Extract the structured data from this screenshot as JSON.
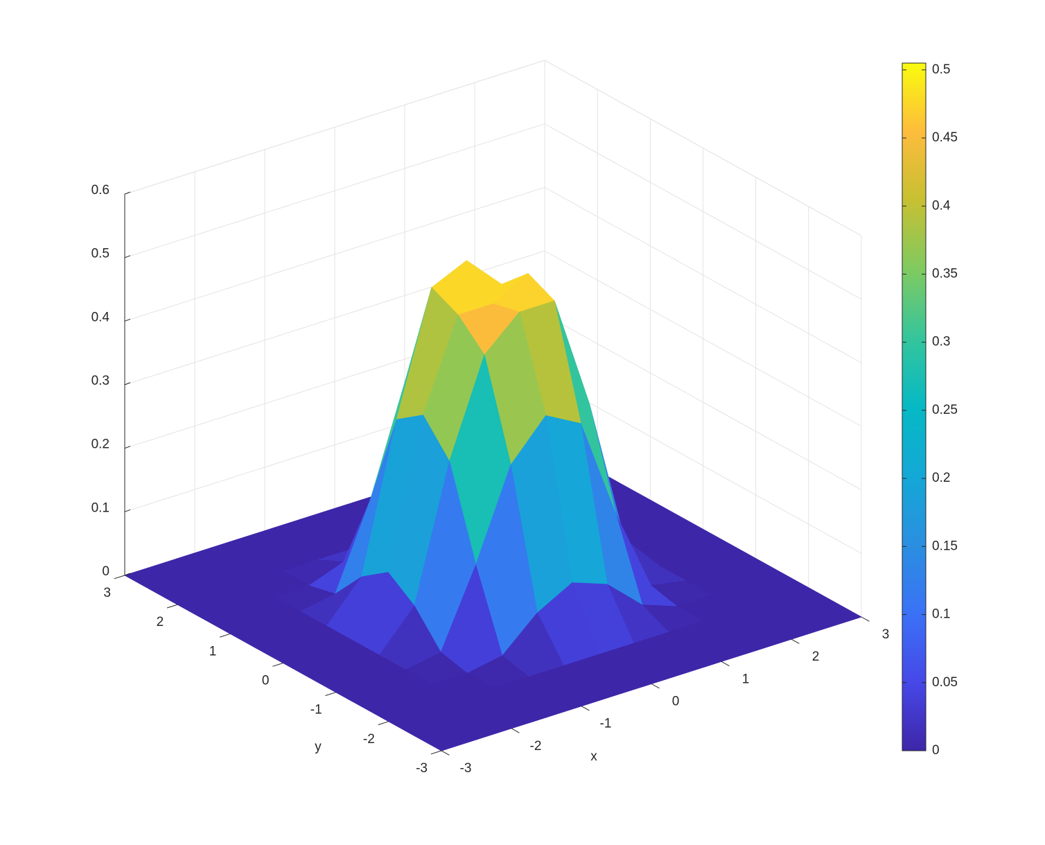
{
  "chart_data": {
    "type": "surface",
    "x_label": "x",
    "y_label": "y",
    "x": [
      -3,
      -2.5,
      -2,
      -1.5,
      -1,
      -0.5,
      0,
      0.5,
      1,
      1.5,
      2,
      2.5,
      3
    ],
    "y": [
      -3,
      -2.5,
      -2,
      -1.5,
      -1,
      -0.5,
      0,
      0.5,
      1,
      1.5,
      2,
      2.5,
      3
    ],
    "z": [
      [
        0,
        0,
        0,
        0,
        0,
        0,
        0,
        0,
        0,
        0,
        0,
        0,
        0
      ],
      [
        0,
        0,
        0,
        0,
        0,
        0,
        0,
        0,
        0,
        0,
        0,
        0,
        0
      ],
      [
        0,
        0,
        0,
        0,
        0,
        0,
        0,
        0,
        0,
        0,
        0,
        0,
        0
      ],
      [
        0,
        0,
        0,
        0,
        0.01,
        0.06,
        0.09,
        0.07,
        0.02,
        0,
        0,
        0,
        0
      ],
      [
        0,
        0,
        0,
        0.01,
        0.13,
        0.27,
        0.33,
        0.3,
        0.14,
        0.01,
        0,
        0,
        0
      ],
      [
        0,
        0,
        0,
        0.06,
        0.27,
        0.42,
        0.47,
        0.47,
        0.29,
        0.06,
        0,
        0,
        0
      ],
      [
        0,
        0,
        0,
        0.09,
        0.32,
        0.46,
        0.46,
        0.49,
        0.34,
        0.09,
        0,
        0,
        0
      ],
      [
        0,
        0,
        0,
        0.06,
        0.29,
        0.48,
        0.505,
        0.45,
        0.28,
        0.06,
        0,
        0,
        0
      ],
      [
        0,
        0,
        0,
        0.01,
        0.14,
        0.31,
        0.34,
        0.29,
        0.13,
        0.01,
        0,
        0,
        0
      ],
      [
        0,
        0,
        0,
        0,
        0.02,
        0.07,
        0.09,
        0.06,
        0.01,
        0,
        0,
        0,
        0
      ],
      [
        0,
        0,
        0,
        0,
        0,
        0,
        0,
        0,
        0,
        0,
        0,
        0,
        0
      ],
      [
        0,
        0,
        0,
        0,
        0,
        0,
        0,
        0,
        0,
        0,
        0,
        0,
        0
      ],
      [
        0,
        0,
        0,
        0,
        0,
        0,
        0,
        0,
        0,
        0,
        0,
        0,
        0
      ]
    ],
    "xlim": [
      -3,
      3
    ],
    "ylim": [
      -3,
      3
    ],
    "zlim": [
      0,
      0.6
    ],
    "xticks": [
      -3,
      -2,
      -1,
      0,
      1,
      2,
      3
    ],
    "yticks": [
      -3,
      -2,
      -1,
      0,
      1,
      2,
      3
    ],
    "zticks": [
      0,
      0.1,
      0.2,
      0.3,
      0.4,
      0.5,
      0.6
    ],
    "colormap": "parula",
    "clim": [
      0,
      0.505
    ],
    "colorbar_ticks": [
      0,
      0.05,
      0.1,
      0.15,
      0.2,
      0.25,
      0.3,
      0.35,
      0.4,
      0.45,
      0.5
    ],
    "grid": true
  }
}
